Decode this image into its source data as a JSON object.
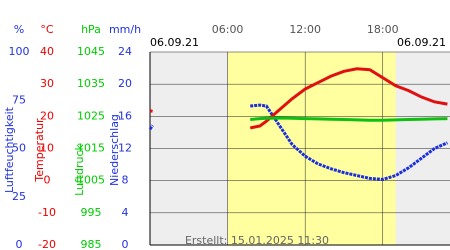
{
  "chart_data": {
    "type": "line",
    "date_left": "06.09.21",
    "date_right": "06.09.21",
    "footer": "Erstellt: 15.01.2025 11:30",
    "x": [
      0,
      0.2,
      1,
      7.75,
      8.5,
      9,
      10,
      11,
      12,
      13,
      14,
      15,
      16,
      17,
      18,
      19,
      20,
      21,
      22,
      23
    ],
    "xlim": [
      0,
      23.2
    ],
    "xticks": [
      {
        "value": 6,
        "label": "06:00"
      },
      {
        "value": 12,
        "label": "12:00"
      },
      {
        "value": 18,
        "label": "18:00"
      }
    ],
    "daylight": [
      6,
      19
    ],
    "daylight_color": "#ffffa0",
    "night_color": "#eeeeee",
    "grid": true,
    "axes": [
      {
        "unit": "%",
        "name": "Luftfeuchtigkeit",
        "color": "#2233dd",
        "lim": [
          0,
          100
        ],
        "ticks": [
          0,
          25,
          50,
          75,
          100
        ]
      },
      {
        "unit": "°C",
        "name": "Temperatur",
        "color": "#ee0000",
        "lim": [
          -20,
          40
        ],
        "ticks": [
          -20,
          -10,
          0,
          10,
          20,
          30,
          40
        ]
      },
      {
        "unit": "hPa",
        "name": "Luftdruck",
        "color": "#00cc00",
        "lim": [
          985,
          1045
        ],
        "ticks": [
          985,
          995,
          1005,
          1015,
          1025,
          1035,
          1045
        ]
      },
      {
        "unit": "mm/h",
        "name": "Niederschlag",
        "color": "#2233dd",
        "lim": [
          0,
          24
        ],
        "ticks": [
          0,
          4,
          8,
          12,
          16,
          20,
          24
        ]
      }
    ],
    "series": [
      {
        "axis": 0,
        "color": "#1a2ee0",
        "values": [
          60,
          62,
          null,
          72,
          72.5,
          72,
          62,
          52,
          46,
          42,
          39.5,
          37.5,
          36,
          34.5,
          34,
          36,
          40,
          45,
          50,
          53
        ]
      },
      {
        "axis": 1,
        "color": "#e01010",
        "values": [
          21.7,
          21.6,
          null,
          16.4,
          17,
          18.5,
          22,
          25.5,
          28.5,
          30.5,
          32.5,
          34,
          34.8,
          34.5,
          32,
          29.5,
          28,
          26,
          24.5,
          23.8
        ]
      },
      {
        "axis": 2,
        "color": "#10c010",
        "values": [
          null,
          null,
          null,
          1024,
          1024.3,
          1024.4,
          1024.5,
          1024.4,
          1024.3,
          1024.2,
          1024.1,
          1024,
          1023.9,
          1023.8,
          1023.8,
          1023.9,
          1024,
          1024.1,
          1024.2,
          1024.3
        ]
      }
    ]
  }
}
